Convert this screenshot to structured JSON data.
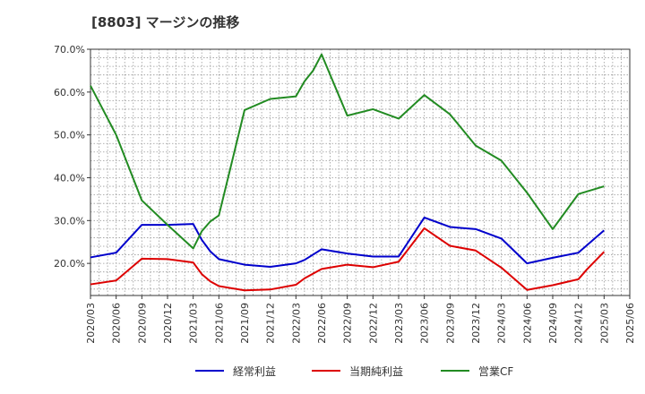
{
  "chart_data": {
    "type": "line",
    "title": "[8803]  マージンの推移",
    "xlabel": "",
    "ylabel": "",
    "ylim": [
      12.5,
      70
    ],
    "y_ticks": [
      "20.0%",
      "30.0%",
      "40.0%",
      "50.0%",
      "60.0%",
      "70.0%"
    ],
    "y_tick_values": [
      20,
      30,
      40,
      50,
      60,
      70
    ],
    "x_ticks": [
      "2020/03",
      "2020/06",
      "2020/09",
      "2020/12",
      "2021/03",
      "2021/06",
      "2021/09",
      "2021/12",
      "2022/03",
      "2022/06",
      "2022/09",
      "2022/12",
      "2023/03",
      "2023/06",
      "2023/09",
      "2023/12",
      "2024/03",
      "2024/06",
      "2024/09",
      "2024/12",
      "2025/03",
      "2025/06"
    ],
    "grid": true,
    "legend_position": "bottom",
    "series": [
      {
        "name": "経常利益",
        "color": "#0000cc",
        "points": [
          [
            "2020/03",
            21.4
          ],
          [
            "2020/06",
            22.5
          ],
          [
            "2020/09",
            29.0
          ],
          [
            "2020/12",
            29.0
          ],
          [
            "2021/03",
            29.2
          ],
          [
            "2021/04",
            25.5
          ],
          [
            "2021/05",
            22.8
          ],
          [
            "2021/06",
            21.0
          ],
          [
            "2021/09",
            19.7
          ],
          [
            "2021/12",
            19.2
          ],
          [
            "2022/03",
            20.0
          ],
          [
            "2022/04",
            20.8
          ],
          [
            "2022/06",
            23.3
          ],
          [
            "2022/09",
            22.3
          ],
          [
            "2022/12",
            21.6
          ],
          [
            "2023/03",
            21.6
          ],
          [
            "2023/06",
            30.7
          ],
          [
            "2023/09",
            28.5
          ],
          [
            "2023/12",
            28.0
          ],
          [
            "2024/03",
            25.8
          ],
          [
            "2024/06",
            20.0
          ],
          [
            "2024/09",
            21.3
          ],
          [
            "2024/12",
            22.5
          ],
          [
            "2025/03",
            27.7
          ]
        ]
      },
      {
        "name": "当期純利益",
        "color": "#dd0000",
        "points": [
          [
            "2020/03",
            15.1
          ],
          [
            "2020/06",
            16.0
          ],
          [
            "2020/09",
            21.1
          ],
          [
            "2020/12",
            21.0
          ],
          [
            "2021/03",
            20.2
          ],
          [
            "2021/04",
            17.5
          ],
          [
            "2021/05",
            15.8
          ],
          [
            "2021/06",
            14.7
          ],
          [
            "2021/09",
            13.7
          ],
          [
            "2021/12",
            13.9
          ],
          [
            "2022/03",
            15.0
          ],
          [
            "2022/04",
            16.5
          ],
          [
            "2022/06",
            18.7
          ],
          [
            "2022/09",
            19.7
          ],
          [
            "2022/12",
            19.1
          ],
          [
            "2023/03",
            20.4
          ],
          [
            "2023/06",
            28.2
          ],
          [
            "2023/09",
            24.1
          ],
          [
            "2023/12",
            23.0
          ],
          [
            "2024/03",
            19.0
          ],
          [
            "2024/06",
            13.8
          ],
          [
            "2024/09",
            14.9
          ],
          [
            "2024/12",
            16.3
          ],
          [
            "2025/01",
            18.6
          ],
          [
            "2025/03",
            22.7
          ]
        ]
      },
      {
        "name": "営業CF",
        "color": "#228b22",
        "points": [
          [
            "2020/03",
            61.5
          ],
          [
            "2020/06",
            50.0
          ],
          [
            "2020/09",
            34.7
          ],
          [
            "2020/12",
            29.0
          ],
          [
            "2021/03",
            23.5
          ],
          [
            "2021/04",
            27.5
          ],
          [
            "2021/05",
            29.8
          ],
          [
            "2021/06",
            31.2
          ],
          [
            "2021/09",
            55.8
          ],
          [
            "2021/12",
            58.4
          ],
          [
            "2022/03",
            59.0
          ],
          [
            "2022/04",
            62.5
          ],
          [
            "2022/05",
            65.0
          ],
          [
            "2022/06",
            68.8
          ],
          [
            "2022/09",
            54.5
          ],
          [
            "2022/12",
            56.0
          ],
          [
            "2023/03",
            53.8
          ],
          [
            "2023/06",
            59.3
          ],
          [
            "2023/09",
            54.8
          ],
          [
            "2023/12",
            47.5
          ],
          [
            "2024/03",
            44.0
          ],
          [
            "2024/06",
            36.5
          ],
          [
            "2024/09",
            28.0
          ],
          [
            "2024/12",
            36.2
          ],
          [
            "2025/03",
            38.0
          ]
        ]
      }
    ]
  }
}
